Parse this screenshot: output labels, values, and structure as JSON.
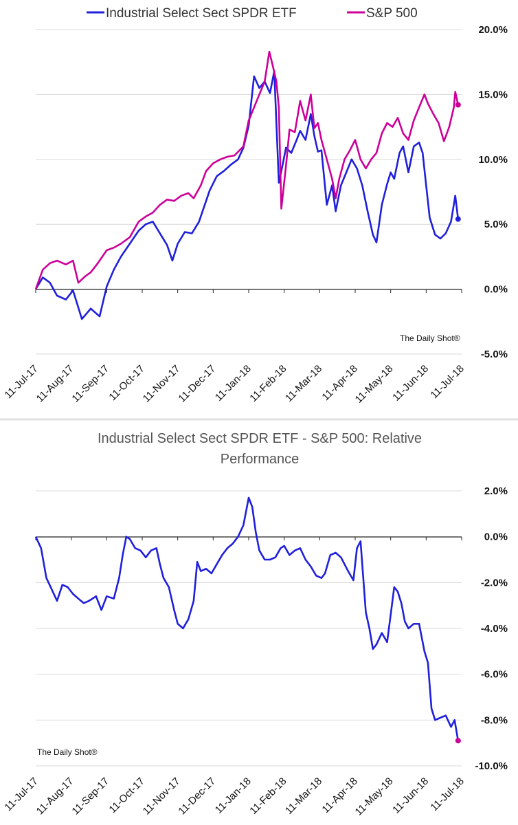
{
  "colors": {
    "etf": "#1f1fdd",
    "spx": "#cc0099",
    "grid": "#d9d9d9",
    "axis": "#222222",
    "divider": "#e0e0e0"
  },
  "x_dates": [
    "11-Jul-17",
    "11-Aug-17",
    "11-Sep-17",
    "11-Oct-17",
    "11-Nov-17",
    "11-Dec-17",
    "11-Jan-18",
    "11-Feb-18",
    "11-Mar-18",
    "11-Apr-18",
    "11-May-18",
    "11-Jun-18",
    "11-Jul-18"
  ],
  "chart_data": [
    {
      "type": "line",
      "title": "",
      "watermark": "The Daily Shot®",
      "legend": {
        "position": "top",
        "entries": [
          "Industrial Select Sect SPDR ETF",
          "S&P 500"
        ]
      },
      "x": "x_dates",
      "y_ticks": [
        "20.0%",
        "15.0%",
        "10.0%",
        "5.0%",
        "0.0%",
        "-5.0%"
      ],
      "ylim": [
        -5,
        20
      ],
      "y_unit": "%",
      "series": [
        {
          "name": "Industrial Select Sect SPDR ETF",
          "color_key": "etf",
          "points": [
            [
              0,
              0
            ],
            [
              0.2,
              0.9
            ],
            [
              0.4,
              0.5
            ],
            [
              0.6,
              -0.5
            ],
            [
              0.85,
              -0.8
            ],
            [
              1.05,
              -0.1
            ],
            [
              1.3,
              -2.3
            ],
            [
              1.55,
              -1.5
            ],
            [
              1.8,
              -2.1
            ],
            [
              2.0,
              0.2
            ],
            [
              2.2,
              1.5
            ],
            [
              2.4,
              2.5
            ],
            [
              2.65,
              3.5
            ],
            [
              2.9,
              4.5
            ],
            [
              3.1,
              5.0
            ],
            [
              3.3,
              5.2
            ],
            [
              3.5,
              4.3
            ],
            [
              3.7,
              3.4
            ],
            [
              3.85,
              2.2
            ],
            [
              4.0,
              3.5
            ],
            [
              4.2,
              4.4
            ],
            [
              4.4,
              4.3
            ],
            [
              4.6,
              5.2
            ],
            [
              4.75,
              6.4
            ],
            [
              4.9,
              7.6
            ],
            [
              5.1,
              8.7
            ],
            [
              5.3,
              9.1
            ],
            [
              5.5,
              9.6
            ],
            [
              5.7,
              10.0
            ],
            [
              5.85,
              10.9
            ],
            [
              6.0,
              12.6
            ],
            [
              6.15,
              16.4
            ],
            [
              6.3,
              15.5
            ],
            [
              6.45,
              16.0
            ],
            [
              6.6,
              15.1
            ],
            [
              6.72,
              16.8
            ],
            [
              6.85,
              8.2
            ],
            [
              6.95,
              9.5
            ],
            [
              7.05,
              10.9
            ],
            [
              7.2,
              10.5
            ],
            [
              7.35,
              11.5
            ],
            [
              7.45,
              12.2
            ],
            [
              7.6,
              11.5
            ],
            [
              7.75,
              13.5
            ],
            [
              7.85,
              11.8
            ],
            [
              7.95,
              10.6
            ],
            [
              8.05,
              10.7
            ],
            [
              8.2,
              6.5
            ],
            [
              8.35,
              8.0
            ],
            [
              8.45,
              6.0
            ],
            [
              8.6,
              8.0
            ],
            [
              8.75,
              9.0
            ],
            [
              8.9,
              10.0
            ],
            [
              9.05,
              9.3
            ],
            [
              9.2,
              8.0
            ],
            [
              9.35,
              6.0
            ],
            [
              9.5,
              4.2
            ],
            [
              9.6,
              3.6
            ],
            [
              9.75,
              6.5
            ],
            [
              9.9,
              8.1
            ],
            [
              10.0,
              9.0
            ],
            [
              10.1,
              8.5
            ],
            [
              10.25,
              10.5
            ],
            [
              10.35,
              11.0
            ],
            [
              10.5,
              9.0
            ],
            [
              10.65,
              11.0
            ],
            [
              10.8,
              11.3
            ],
            [
              10.9,
              10.5
            ],
            [
              11.0,
              8.0
            ],
            [
              11.1,
              5.5
            ],
            [
              11.25,
              4.2
            ],
            [
              11.4,
              3.9
            ],
            [
              11.55,
              4.3
            ],
            [
              11.7,
              5.2
            ],
            [
              11.82,
              7.2
            ],
            [
              11.9,
              5.4
            ]
          ]
        },
        {
          "name": "S&P 500",
          "color_key": "spx",
          "points": [
            [
              0,
              0
            ],
            [
              0.2,
              1.5
            ],
            [
              0.4,
              2.0
            ],
            [
              0.6,
              2.2
            ],
            [
              0.85,
              1.9
            ],
            [
              1.05,
              2.2
            ],
            [
              1.2,
              0.5
            ],
            [
              1.4,
              1.0
            ],
            [
              1.55,
              1.3
            ],
            [
              1.75,
              2.0
            ],
            [
              2.0,
              3.0
            ],
            [
              2.2,
              3.2
            ],
            [
              2.4,
              3.5
            ],
            [
              2.65,
              4.0
            ],
            [
              2.9,
              5.2
            ],
            [
              3.1,
              5.6
            ],
            [
              3.3,
              5.9
            ],
            [
              3.5,
              6.5
            ],
            [
              3.7,
              6.9
            ],
            [
              3.9,
              6.8
            ],
            [
              4.1,
              7.2
            ],
            [
              4.3,
              7.4
            ],
            [
              4.45,
              7.0
            ],
            [
              4.65,
              8.0
            ],
            [
              4.8,
              9.1
            ],
            [
              5.0,
              9.7
            ],
            [
              5.2,
              10.0
            ],
            [
              5.4,
              10.2
            ],
            [
              5.6,
              10.3
            ],
            [
              5.85,
              11.0
            ],
            [
              6.0,
              13.0
            ],
            [
              6.15,
              14.0
            ],
            [
              6.3,
              15.0
            ],
            [
              6.45,
              16.0
            ],
            [
              6.58,
              18.3
            ],
            [
              6.68,
              17.2
            ],
            [
              6.78,
              16.0
            ],
            [
              6.85,
              14.0
            ],
            [
              6.92,
              6.2
            ],
            [
              7.05,
              9.5
            ],
            [
              7.15,
              12.3
            ],
            [
              7.3,
              12.1
            ],
            [
              7.45,
              14.5
            ],
            [
              7.6,
              13.0
            ],
            [
              7.75,
              15.0
            ],
            [
              7.85,
              12.4
            ],
            [
              7.95,
              12.8
            ],
            [
              8.05,
              11.5
            ],
            [
              8.2,
              10.0
            ],
            [
              8.35,
              8.5
            ],
            [
              8.45,
              7.0
            ],
            [
              8.55,
              8.5
            ],
            [
              8.7,
              10.0
            ],
            [
              8.85,
              10.7
            ],
            [
              9.0,
              11.5
            ],
            [
              9.15,
              10.0
            ],
            [
              9.3,
              9.3
            ],
            [
              9.45,
              10.0
            ],
            [
              9.6,
              10.5
            ],
            [
              9.75,
              12.0
            ],
            [
              9.9,
              12.8
            ],
            [
              10.05,
              12.5
            ],
            [
              10.2,
              13.2
            ],
            [
              10.35,
              12.0
            ],
            [
              10.5,
              11.5
            ],
            [
              10.65,
              13.0
            ],
            [
              10.8,
              14.0
            ],
            [
              10.95,
              15.0
            ],
            [
              11.05,
              14.3
            ],
            [
              11.2,
              13.5
            ],
            [
              11.35,
              12.8
            ],
            [
              11.5,
              11.4
            ],
            [
              11.65,
              12.5
            ],
            [
              11.78,
              14.0
            ],
            [
              11.82,
              15.2
            ],
            [
              11.9,
              14.2
            ]
          ]
        }
      ]
    },
    {
      "type": "line",
      "title": "Industrial Select Sect SPDR ETF - S&P 500:   Relative Performance",
      "title_lines": [
        "Industrial Select Sect SPDR ETF - S&P 500:   Relative",
        "Performance"
      ],
      "watermark": "The Daily Shot®",
      "x": "x_dates",
      "y_ticks": [
        "2.0%",
        "0.0%",
        "-2.0%",
        "-4.0%",
        "-6.0%",
        "-8.0%",
        "-10.0%"
      ],
      "ylim": [
        -10,
        2
      ],
      "y_unit": "%",
      "series": [
        {
          "name": "Industrial Select Sect SPDR ETF - S&P 500",
          "color_key": "etf",
          "points": [
            [
              0,
              0
            ],
            [
              0.15,
              -0.5
            ],
            [
              0.3,
              -1.8
            ],
            [
              0.45,
              -2.3
            ],
            [
              0.6,
              -2.8
            ],
            [
              0.75,
              -2.1
            ],
            [
              0.9,
              -2.2
            ],
            [
              1.05,
              -2.5
            ],
            [
              1.2,
              -2.7
            ],
            [
              1.35,
              -2.9
            ],
            [
              1.5,
              -2.8
            ],
            [
              1.7,
              -2.6
            ],
            [
              1.85,
              -3.2
            ],
            [
              2.0,
              -2.6
            ],
            [
              2.2,
              -2.7
            ],
            [
              2.35,
              -1.8
            ],
            [
              2.45,
              -0.8
            ],
            [
              2.55,
              0.0
            ],
            [
              2.65,
              -0.1
            ],
            [
              2.8,
              -0.5
            ],
            [
              2.95,
              -0.6
            ],
            [
              3.1,
              -0.9
            ],
            [
              3.25,
              -0.6
            ],
            [
              3.4,
              -0.5
            ],
            [
              3.5,
              -1.2
            ],
            [
              3.6,
              -1.8
            ],
            [
              3.75,
              -2.2
            ],
            [
              3.9,
              -3.2
            ],
            [
              4.0,
              -3.8
            ],
            [
              4.15,
              -4.0
            ],
            [
              4.3,
              -3.6
            ],
            [
              4.45,
              -2.8
            ],
            [
              4.55,
              -1.1
            ],
            [
              4.65,
              -1.5
            ],
            [
              4.8,
              -1.4
            ],
            [
              4.95,
              -1.6
            ],
            [
              5.1,
              -1.2
            ],
            [
              5.25,
              -0.8
            ],
            [
              5.4,
              -0.5
            ],
            [
              5.55,
              -0.3
            ],
            [
              5.7,
              0.0
            ],
            [
              5.85,
              0.5
            ],
            [
              6.0,
              1.7
            ],
            [
              6.1,
              1.3
            ],
            [
              6.2,
              0.2
            ],
            [
              6.3,
              -0.6
            ],
            [
              6.45,
              -1.0
            ],
            [
              6.6,
              -1.0
            ],
            [
              6.75,
              -0.9
            ],
            [
              6.9,
              -0.5
            ],
            [
              7.0,
              -0.4
            ],
            [
              7.15,
              -0.8
            ],
            [
              7.3,
              -0.6
            ],
            [
              7.45,
              -0.5
            ],
            [
              7.6,
              -1.0
            ],
            [
              7.75,
              -1.3
            ],
            [
              7.9,
              -1.7
            ],
            [
              8.05,
              -1.8
            ],
            [
              8.15,
              -1.6
            ],
            [
              8.3,
              -0.8
            ],
            [
              8.45,
              -0.7
            ],
            [
              8.6,
              -0.9
            ],
            [
              8.7,
              -1.2
            ],
            [
              8.8,
              -1.5
            ],
            [
              8.95,
              -1.9
            ],
            [
              9.05,
              -0.5
            ],
            [
              9.15,
              -0.2
            ],
            [
              9.3,
              -3.3
            ],
            [
              9.4,
              -4.0
            ],
            [
              9.5,
              -4.9
            ],
            [
              9.6,
              -4.7
            ],
            [
              9.75,
              -4.2
            ],
            [
              9.9,
              -4.6
            ],
            [
              10.0,
              -3.4
            ],
            [
              10.1,
              -2.2
            ],
            [
              10.2,
              -2.4
            ],
            [
              10.3,
              -2.9
            ],
            [
              10.4,
              -3.7
            ],
            [
              10.5,
              -4.0
            ],
            [
              10.65,
              -3.8
            ],
            [
              10.8,
              -3.8
            ],
            [
              10.95,
              -5.0
            ],
            [
              11.05,
              -5.5
            ],
            [
              11.15,
              -7.5
            ],
            [
              11.25,
              -8.0
            ],
            [
              11.4,
              -7.9
            ],
            [
              11.55,
              -7.8
            ],
            [
              11.7,
              -8.3
            ],
            [
              11.8,
              -8.0
            ],
            [
              11.9,
              -8.9
            ]
          ]
        }
      ]
    }
  ]
}
